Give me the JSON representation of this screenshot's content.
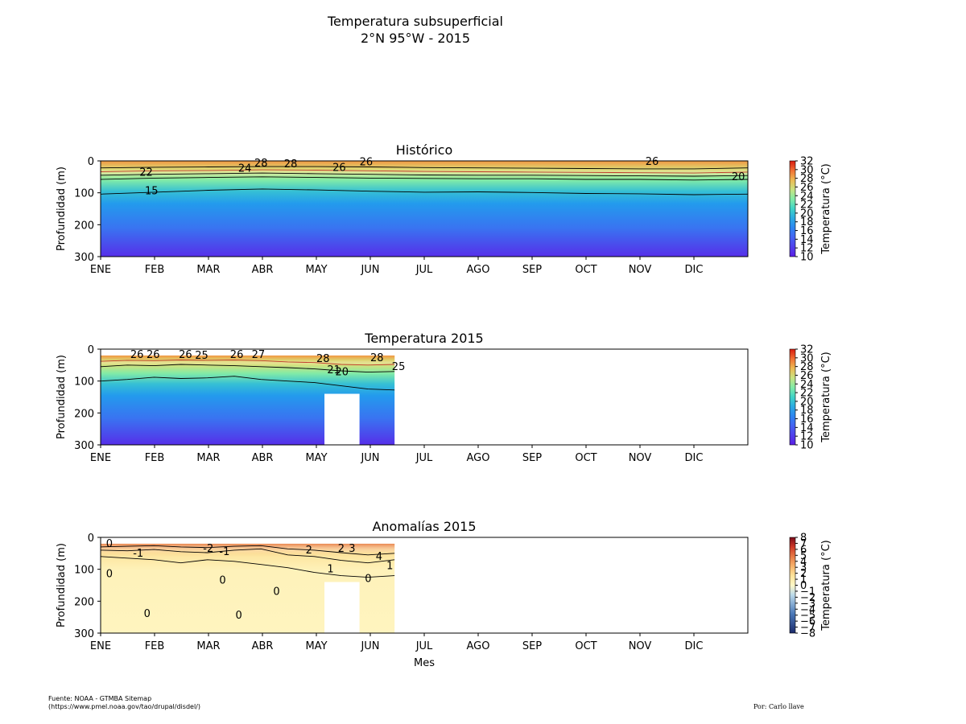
{
  "figure": {
    "title_line1": "Temperatura subsuperficial",
    "title_line2": "2°N 95°W - 2015",
    "source_line1": "Fuente: NOAA - GTMBA Sitemap",
    "source_line2": "(https://www.pmel.noaa.gov/tao/drupal/disdel/)",
    "author": "Por: Carlo llave"
  },
  "chart_data": [
    {
      "type": "heatmap",
      "title": "Histórico",
      "ylabel": "Profundidad (m)",
      "xlabel": "",
      "categories": [
        "ENE",
        "FEB",
        "MAR",
        "ABR",
        "MAY",
        "JUN",
        "JUL",
        "AGO",
        "SEP",
        "OCT",
        "NOV",
        "DIC"
      ],
      "ylim": [
        300,
        0
      ],
      "yticks": [
        0,
        100,
        200,
        300
      ],
      "data_extent_months": [
        0,
        12
      ],
      "colorbar": {
        "label": "Temperatura (°C)",
        "ticks": [
          10,
          12,
          14,
          16,
          18,
          20,
          22,
          24,
          26,
          28,
          30,
          32
        ],
        "range": [
          10,
          32
        ],
        "colormap": "rainbow"
      },
      "contour_labels": [
        {
          "text": "22",
          "month": 0.72,
          "depth": 36
        },
        {
          "text": "15",
          "month": 0.82,
          "depth": 95
        },
        {
          "text": "24",
          "month": 2.55,
          "depth": 24
        },
        {
          "text": "28",
          "month": 2.85,
          "depth": 8
        },
        {
          "text": "28",
          "month": 3.4,
          "depth": 10
        },
        {
          "text": "26",
          "month": 4.3,
          "depth": 22
        },
        {
          "text": "26",
          "month": 4.8,
          "depth": 4
        },
        {
          "text": "26",
          "month": 10.1,
          "depth": 2
        },
        {
          "text": "20",
          "month": 11.7,
          "depth": 50
        }
      ],
      "contour_lines": [
        {
          "level": 15,
          "color": "#000000",
          "depths": [
            104,
            98,
            92,
            88,
            91,
            95,
            98,
            97,
            99,
            102,
            103,
            106,
            104
          ]
        },
        {
          "level": 20,
          "color": "#000000",
          "depths": [
            58,
            54,
            52,
            50,
            52,
            54,
            55,
            56,
            56,
            58,
            58,
            60,
            58
          ]
        },
        {
          "level": 22,
          "color": "#000000",
          "depths": [
            45,
            42,
            40,
            38,
            40,
            42,
            44,
            45,
            45,
            46,
            47,
            48,
            46
          ]
        },
        {
          "level": 24,
          "color": "#c0392b",
          "depths": [
            34,
            31,
            30,
            28,
            29,
            31,
            33,
            34,
            35,
            36,
            37,
            38,
            35
          ]
        },
        {
          "level": 26,
          "color": "#000000",
          "depths": [
            22,
            20,
            19,
            18,
            18,
            19,
            21,
            22,
            23,
            24,
            25,
            25,
            22
          ]
        }
      ]
    },
    {
      "type": "heatmap",
      "title": "Temperatura 2015",
      "ylabel": "Profundidad (m)",
      "xlabel": "",
      "categories": [
        "ENE",
        "FEB",
        "MAR",
        "ABR",
        "MAY",
        "JUN",
        "JUL",
        "AGO",
        "SEP",
        "OCT",
        "NOV",
        "DIC"
      ],
      "ylim": [
        300,
        0
      ],
      "yticks": [
        0,
        100,
        200,
        300
      ],
      "data_extent_months": [
        0,
        5.45
      ],
      "data_top_depth": 20,
      "gap": {
        "month_start": 4.15,
        "month_end": 4.8,
        "depth_start": 140,
        "depth_end": 300
      },
      "colorbar": {
        "label": "Temperatura (°C)",
        "ticks": [
          10,
          12,
          14,
          16,
          18,
          20,
          22,
          24,
          26,
          28,
          30,
          32
        ],
        "range": [
          10,
          32
        ],
        "colormap": "rainbow"
      },
      "contour_labels": [
        {
          "text": "26",
          "month": 0.55,
          "depth": 18
        },
        {
          "text": "26",
          "month": 0.85,
          "depth": 18
        },
        {
          "text": "26",
          "month": 1.45,
          "depth": 18
        },
        {
          "text": "25",
          "month": 1.75,
          "depth": 20
        },
        {
          "text": "26",
          "month": 2.4,
          "depth": 18
        },
        {
          "text": "27",
          "month": 2.8,
          "depth": 18
        },
        {
          "text": "28",
          "month": 4.0,
          "depth": 30
        },
        {
          "text": "21",
          "month": 4.2,
          "depth": 65
        },
        {
          "text": "20",
          "month": 4.35,
          "depth": 72
        },
        {
          "text": "28",
          "month": 5.0,
          "depth": 28
        },
        {
          "text": "25",
          "month": 5.4,
          "depth": 55
        }
      ],
      "contour_lines": [
        {
          "level": 15,
          "color": "#000000",
          "depths": [
            100,
            95,
            88,
            92,
            90,
            85,
            95,
            100,
            105,
            115,
            125,
            128
          ]
        },
        {
          "level": 20,
          "color": "#000000",
          "depths": [
            55,
            50,
            52,
            48,
            50,
            52,
            55,
            58,
            62,
            68,
            72,
            70
          ]
        },
        {
          "level": 25,
          "color": "#c0392b",
          "depths": [
            38,
            35,
            36,
            34,
            35,
            34,
            36,
            40,
            42,
            48,
            50,
            48
          ]
        }
      ]
    },
    {
      "type": "heatmap",
      "title": "Anomalías 2015",
      "ylabel": "Profundidad (m)",
      "xlabel": "Mes",
      "categories": [
        "ENE",
        "FEB",
        "MAR",
        "ABR",
        "MAY",
        "JUN",
        "JUL",
        "AGO",
        "SEP",
        "OCT",
        "NOV",
        "DIC"
      ],
      "ylim": [
        300,
        0
      ],
      "yticks": [
        0,
        100,
        200,
        300
      ],
      "data_extent_months": [
        0,
        5.45
      ],
      "data_top_depth": 20,
      "gap": {
        "month_start": 4.15,
        "month_end": 4.8,
        "depth_start": 140,
        "depth_end": 300
      },
      "colorbar": {
        "label": "Temperatura (°C)",
        "ticks": [
          -8,
          -7,
          -6,
          -5,
          -4,
          -3,
          -2,
          -1,
          0,
          1,
          2,
          3,
          4,
          5,
          6,
          7,
          8
        ],
        "range": [
          -8,
          8
        ],
        "colormap": "diverging"
      },
      "contour_labels": [
        {
          "text": "0",
          "month": 0.1,
          "depth": 20
        },
        {
          "text": "0",
          "month": 0.1,
          "depth": 115
        },
        {
          "text": "-1",
          "month": 0.6,
          "depth": 50
        },
        {
          "text": "-2",
          "month": 1.9,
          "depth": 35
        },
        {
          "text": "-1",
          "month": 2.2,
          "depth": 45
        },
        {
          "text": "0",
          "month": 2.2,
          "depth": 135
        },
        {
          "text": "0",
          "month": 2.5,
          "depth": 245
        },
        {
          "text": "0",
          "month": 3.2,
          "depth": 170
        },
        {
          "text": "2",
          "month": 3.8,
          "depth": 40
        },
        {
          "text": "2",
          "month": 4.4,
          "depth": 35
        },
        {
          "text": "3",
          "month": 4.6,
          "depth": 35
        },
        {
          "text": "1",
          "month": 4.2,
          "depth": 100
        },
        {
          "text": "0",
          "month": 0.8,
          "depth": 240
        },
        {
          "text": "0",
          "month": 4.9,
          "depth": 130
        },
        {
          "text": "4",
          "month": 5.1,
          "depth": 60
        },
        {
          "text": "1",
          "month": 5.3,
          "depth": 90
        }
      ],
      "contour_lines": [
        {
          "level": 0,
          "color": "#000000",
          "depths": [
            60,
            65,
            70,
            80,
            70,
            75,
            85,
            95,
            110,
            120,
            125,
            120
          ]
        },
        {
          "level": 1,
          "color": "#000000",
          "depths": [
            40,
            42,
            38,
            45,
            48,
            40,
            36,
            55,
            60,
            72,
            80,
            70
          ]
        },
        {
          "level": 2,
          "color": "#000000",
          "depths": [
            30,
            28,
            26,
            30,
            32,
            28,
            26,
            36,
            40,
            48,
            55,
            50
          ]
        }
      ]
    }
  ]
}
